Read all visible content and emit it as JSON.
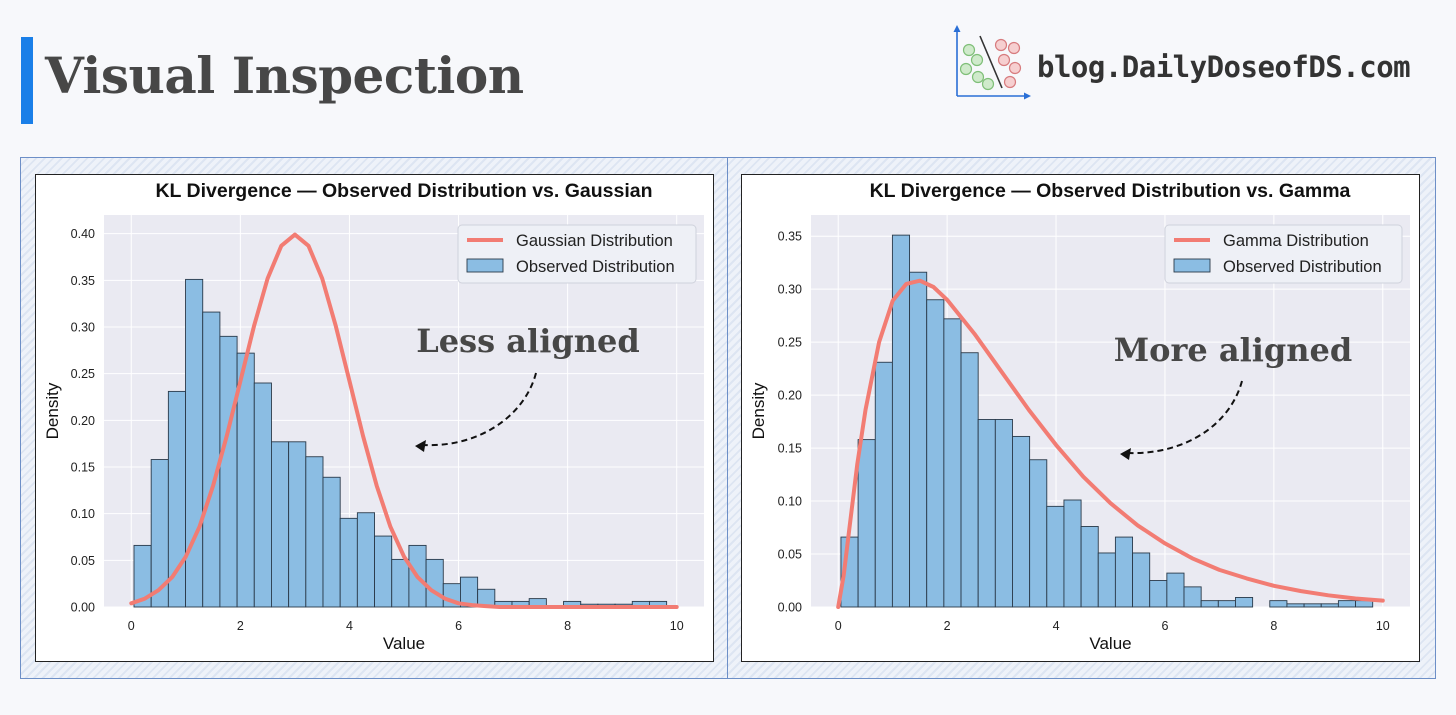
{
  "header": {
    "title": "Visual Inspection",
    "brand": "blog.DailyDoseofDS.com",
    "accent_color": "#1a7fe8"
  },
  "colors": {
    "bar_fill": "#8bbde3",
    "bar_edge": "#2a3a4a",
    "curve": "#f27c73",
    "plot_bg": "#eaeaf2",
    "grid": "#ffffff"
  },
  "chart_data": [
    {
      "type": "bar",
      "title": "KL Divergence — Observed Distribution  vs. Gaussian",
      "xlabel": "Value",
      "ylabel": "Density",
      "xlim": [
        -0.5,
        10.5
      ],
      "ylim": [
        0,
        0.42
      ],
      "xticks": [
        "0",
        "2",
        "4",
        "6",
        "8",
        "10"
      ],
      "yticks": [
        "0.00",
        "0.05",
        "0.10",
        "0.15",
        "0.20",
        "0.25",
        "0.30",
        "0.35",
        "0.40"
      ],
      "grid": true,
      "legend_position": "top-right",
      "legend": [
        "Gaussian Distribution",
        "Observed Distribution"
      ],
      "annotation": "Less aligned",
      "histogram": {
        "name": "Observed Distribution",
        "bin_start": 0.05,
        "bin_width": 0.315,
        "values": [
          0.066,
          0.158,
          0.231,
          0.351,
          0.316,
          0.29,
          0.272,
          0.24,
          0.177,
          0.177,
          0.161,
          0.139,
          0.095,
          0.101,
          0.076,
          0.051,
          0.066,
          0.051,
          0.025,
          0.032,
          0.019,
          0.006,
          0.006,
          0.009,
          0.0,
          0.006,
          0.003,
          0.003,
          0.003,
          0.006,
          0.006
        ]
      },
      "curve": {
        "name": "Gaussian Distribution",
        "x": [
          0.0,
          0.25,
          0.5,
          0.75,
          1.0,
          1.25,
          1.5,
          1.75,
          2.0,
          2.25,
          2.5,
          2.75,
          3.0,
          3.25,
          3.5,
          3.75,
          4.0,
          4.25,
          4.5,
          4.75,
          5.0,
          5.25,
          5.5,
          5.75,
          6.0,
          6.25,
          6.5,
          6.75,
          7.0,
          7.5,
          8.0,
          9.0,
          10.0
        ],
        "y": [
          0.004,
          0.009,
          0.018,
          0.032,
          0.054,
          0.086,
          0.13,
          0.183,
          0.242,
          0.301,
          0.352,
          0.387,
          0.399,
          0.387,
          0.352,
          0.301,
          0.242,
          0.183,
          0.13,
          0.086,
          0.054,
          0.032,
          0.018,
          0.009,
          0.004,
          0.002,
          0.001,
          0.0,
          0.0,
          0.0,
          0.0,
          0.0,
          0.0
        ]
      }
    },
    {
      "type": "bar",
      "title": "KL Divergence — Observed Distribution  vs. Gamma",
      "xlabel": "Value",
      "ylabel": "Density",
      "xlim": [
        -0.5,
        10.5
      ],
      "ylim": [
        0,
        0.37
      ],
      "xticks": [
        "0",
        "2",
        "4",
        "6",
        "8",
        "10"
      ],
      "yticks": [
        "0.00",
        "0.05",
        "0.10",
        "0.15",
        "0.20",
        "0.25",
        "0.30",
        "0.35"
      ],
      "grid": true,
      "legend_position": "top-right",
      "legend": [
        "Gamma Distribution",
        "Observed Distribution"
      ],
      "annotation": "More aligned",
      "histogram": {
        "name": "Observed Distribution",
        "bin_start": 0.05,
        "bin_width": 0.315,
        "values": [
          0.066,
          0.158,
          0.231,
          0.351,
          0.316,
          0.29,
          0.272,
          0.24,
          0.177,
          0.177,
          0.161,
          0.139,
          0.095,
          0.101,
          0.076,
          0.051,
          0.066,
          0.051,
          0.025,
          0.032,
          0.019,
          0.006,
          0.006,
          0.009,
          0.0,
          0.006,
          0.003,
          0.003,
          0.003,
          0.006,
          0.006
        ]
      },
      "curve": {
        "name": "Gamma Distribution",
        "x": [
          0.0,
          0.1,
          0.2,
          0.35,
          0.5,
          0.75,
          1.0,
          1.25,
          1.5,
          1.75,
          2.0,
          2.5,
          3.0,
          3.5,
          4.0,
          4.5,
          5.0,
          5.5,
          6.0,
          6.5,
          7.0,
          7.5,
          8.0,
          8.5,
          9.0,
          9.5,
          10.0
        ],
        "y": [
          0.0,
          0.03,
          0.072,
          0.135,
          0.186,
          0.25,
          0.289,
          0.305,
          0.308,
          0.302,
          0.29,
          0.258,
          0.222,
          0.186,
          0.153,
          0.123,
          0.098,
          0.077,
          0.06,
          0.046,
          0.035,
          0.027,
          0.02,
          0.015,
          0.011,
          0.008,
          0.006
        ]
      }
    }
  ]
}
